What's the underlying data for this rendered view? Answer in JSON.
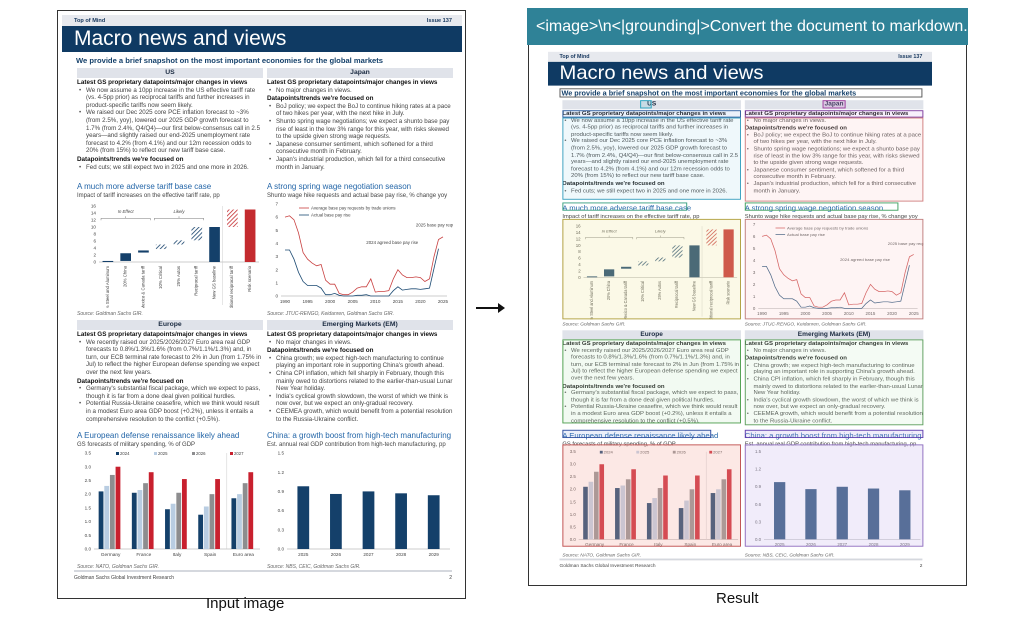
{
  "prompt": "<image>\\n<|grounding|>Convert the document to markdown.",
  "captions": {
    "input": "Input image",
    "result": "Result"
  },
  "doc": {
    "header_left": "Top of Mind",
    "header_right": "Issue 137",
    "title": "Macro news and views",
    "subtitle": "We provide a brief snapshot on the most important economies for the global markets",
    "sections": {
      "us": {
        "heading": "US",
        "latest_label": "Latest GS proprietary datapoints/major changes in views",
        "latest": [
          "We now assume a 10pp increase in the US effective tariff rate (vs. 4-5pp prior) as reciprocal tariffs and further increases in product-specific tariffs now seem likely.",
          "We raised our Dec 2025 core PCE inflation forecast to ~3% (from 2.5%, yoy), lowered our 2025 GDP growth forecast to 1.7% (from 2.4%, Q4/Q4)—our first below-consensus call in 2.5 years—and slightly raised our end-2025 unemployment rate forecast to 4.2% (from 4.1%) and our 12m recession odds to 20% (from 15%) to reflect our new tariff base case."
        ],
        "focus_label": "Datapoints/trends we're focused on",
        "focus": [
          "Fed cuts; we still expect two in 2025 and one more in 2026."
        ]
      },
      "japan": {
        "heading": "Japan",
        "latest_label": "Latest GS proprietary datapoints/major changes in views",
        "latest": [
          "No major changes in views."
        ],
        "focus_label": "Datapoints/trends we're focused on",
        "focus": [
          "BoJ policy; we expect the BoJ to continue hiking rates at a pace of two hikes per year, with the next hike in July.",
          "Shunto spring wage negotiations; we expect a shunto base pay rise of least in the low 3% range for this year, with risks skewed to the upside given strong wage requests.",
          "Japanese consumer sentiment, which softened for a third consecutive month in February.",
          "Japan's industrial production, which fell for a third consecutive month in January."
        ]
      },
      "europe": {
        "heading": "Europe",
        "latest_label": "Latest GS proprietary datapoints/major changes in views",
        "latest": [
          "We recently raised our 2025/2026/2027 Euro area real GDP forecasts to 0.8%/1.3%/1.6% (from 0.7%/1.1%/1.3%) and, in turn, our ECB terminal rate forecast to 2% in Jun (from 1.75% in Jul) to reflect the higher European defense spending we expect over the next few years."
        ],
        "focus_label": "Datapoints/trends we're focused on",
        "focus": [
          "Germany's substantial fiscal package, which we expect to pass, though it is far from a done deal given political hurdles.",
          "Potential Russia-Ukraine ceasefire, which we think would result in a modest Euro area GDP boost (+0.2%), unless it entails a comprehensive resolution to the conflict (+0.5%)."
        ]
      },
      "em": {
        "heading": "Emerging Markets (EM)",
        "latest_label": "Latest GS proprietary datapoints/major changes in views",
        "latest": [
          "No major changes in views."
        ],
        "focus_label": "Datapoints/trends we're focused on",
        "focus": [
          "China growth; we expect high-tech manufacturing to continue playing an important role in supporting China's growth ahead.",
          "China CPI inflation, which fell sharply in February, though this mainly owed to distortions related to the earlier-than-usual Lunar New Year holiday.",
          "India's cyclical growth slowdown, the worst of which we think is now over, but we expect an only-gradual recovery.",
          "CEEMEA growth, which would benefit from a potential resolution to the Russia-Ukraine conflict."
        ]
      }
    },
    "footer_left": "Goldman Sachs Global Investment Research",
    "footer_right": "2"
  },
  "chart_data": [
    {
      "id": "tariff",
      "type": "bar",
      "title": "A much more adverse tariff base case",
      "subtitle": "Impact of tariff increases on the effective tariff rate, pp",
      "source": "Source: Goldman Sachs GIR.",
      "ylim": [
        0,
        16
      ],
      "yticks": [
        0,
        2,
        4,
        6,
        8,
        10,
        12,
        14,
        16
      ],
      "annotations": [
        "In Effect",
        "Likely"
      ],
      "categories": [
        "25% Steel and Aluminum",
        "20% China",
        "Limited Mexico & Canada tariff",
        "10% Critical",
        "25% Autos",
        "Reciprocal tariff",
        "New GS baseline",
        "Additional reciprocal tariff",
        "Risk scenario"
      ],
      "ranges": [
        [
          0,
          0.3
        ],
        [
          0.3,
          2.5
        ],
        [
          2.7,
          3.3
        ],
        [
          3.7,
          5
        ],
        [
          5,
          6.2
        ],
        [
          6.2,
          10
        ],
        [
          0,
          10
        ],
        [
          10,
          15
        ],
        [
          0,
          15
        ]
      ],
      "styles": [
        "solid",
        "solid",
        "solid",
        "hatch",
        "hatch",
        "hatch",
        "solid",
        "hatch-red",
        "solid-red"
      ],
      "colors": {
        "navy": "#14406a",
        "red": "#c42b2f"
      }
    },
    {
      "id": "wages",
      "type": "line",
      "title": "A strong spring wage negotiation season",
      "subtitle": "Shunto wage hike requests and actual base pay rise, % change yoy",
      "source": "Source: JTUC-RENGO, Keidanren, Goldman Sachs GIR.",
      "ylim": [
        0,
        7
      ],
      "yticks": [
        0,
        1,
        2,
        3,
        4,
        5,
        6,
        7
      ],
      "xticks": [
        1990,
        1995,
        2000,
        2005,
        2010,
        2015,
        2020,
        2025
      ],
      "x": [
        1990,
        1991,
        1992,
        1993,
        1994,
        1995,
        1996,
        1997,
        1998,
        1999,
        2000,
        2001,
        2002,
        2003,
        2004,
        2005,
        2006,
        2007,
        2008,
        2009,
        2010,
        2011,
        2012,
        2013,
        2014,
        2015,
        2016,
        2017,
        2018,
        2019,
        2020,
        2021,
        2022,
        2023,
        2024,
        2025
      ],
      "series": [
        {
          "name": "Average base pay requests by trade unions",
          "color": "#c84040",
          "values": [
            6,
            6.1,
            5.8,
            4.8,
            3.3,
            2.8,
            2.5,
            2.3,
            2.4,
            1.2,
            0.9,
            0.9,
            0.2,
            0.1,
            0.1,
            0.3,
            0.6,
            0.7,
            0.7,
            1.3,
            0.3,
            0.35,
            0.35,
            0.4,
            1.3,
            2.0,
            1.6,
            1.4,
            1.4,
            1.45,
            1.4,
            1.1,
            1.3,
            3.0,
            4.3,
            4.5
          ]
        },
        {
          "name": "Actual base pay rise",
          "color": "#1d4b73",
          "values": [
            3.5,
            3.5,
            2.8,
            1.8,
            1.1,
            0.8,
            0.8,
            0.8,
            0.6,
            0.1,
            0.1,
            0.2,
            0.05,
            0,
            0,
            0,
            0.05,
            0.05,
            0.1,
            0,
            0,
            0,
            0,
            0,
            0.4,
            0.7,
            0.45,
            0.5,
            0.55,
            0.55,
            0.5,
            0.55,
            0.6,
            2.1,
            3.6,
            null
          ]
        }
      ],
      "annotations": [
        "2025 base pay requests",
        "2024 agreed base pay rise"
      ]
    },
    {
      "id": "defense",
      "type": "bar",
      "title": "A European defense renaissance likely ahead",
      "subtitle": "GS forecasts of military spending, % of GDP",
      "source": "Source: NATO, Goldman Sachs GIR.",
      "ylim": [
        0,
        3.5
      ],
      "yticks": [
        0,
        0.5,
        1,
        1.5,
        2,
        2.5,
        3,
        3.5
      ],
      "categories": [
        "Germany",
        "France",
        "Italy",
        "Spain",
        "Euro area"
      ],
      "series": [
        {
          "name": "2024",
          "color": "#14406a",
          "values": [
            2.1,
            2.05,
            1.45,
            1.25,
            1.85
          ]
        },
        {
          "name": "2025",
          "color": "#b9cde2",
          "values": [
            2.3,
            2.15,
            1.65,
            1.55,
            2.0
          ]
        },
        {
          "name": "2026",
          "color": "#8d8d8f",
          "values": [
            2.7,
            2.4,
            2.05,
            2.0,
            2.4
          ]
        },
        {
          "name": "2027",
          "color": "#c8202e",
          "values": [
            3.0,
            2.8,
            2.55,
            2.55,
            2.8
          ]
        }
      ]
    },
    {
      "id": "china",
      "type": "bar",
      "title": "China: a growth boost from high-tech manufacturing",
      "subtitle": "Est. annual real GDP contribution from high-tech manufacturing, pp",
      "source": "Source: NBS, CEIC, Goldman Sachs GIR.",
      "ylim": [
        0,
        1.5
      ],
      "yticks": [
        0,
        0.3,
        0.6,
        0.9,
        1.2,
        1.5
      ],
      "categories": [
        "2025",
        "2026",
        "2027",
        "2028",
        "2029"
      ],
      "values": [
        0.98,
        0.86,
        0.9,
        0.87,
        0.84
      ],
      "color": "#14406a"
    }
  ]
}
